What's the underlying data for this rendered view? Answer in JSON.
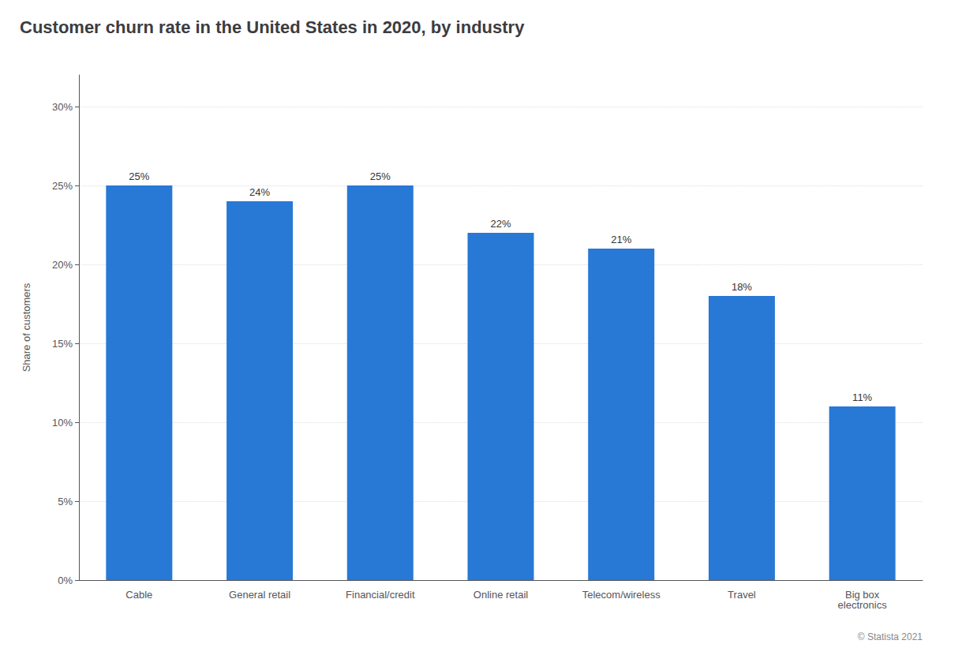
{
  "chart_data": {
    "type": "bar",
    "title": "Customer churn rate in the United States in 2020, by industry",
    "categories": [
      "Cable",
      "General retail",
      "Financial/credit",
      "Online retail",
      "Telecom/wireless",
      "Travel",
      "Big box\nelectronics"
    ],
    "values": [
      25,
      24,
      25,
      22,
      21,
      18,
      11
    ],
    "value_labels": [
      "25%",
      "24%",
      "25%",
      "22%",
      "21%",
      "18%",
      "11%"
    ],
    "data_labels": true,
    "color": "#2878d6",
    "ylabel": "Share of customers",
    "ylim": [
      0,
      32
    ],
    "yticks": [
      {
        "value": 0,
        "label": "0%"
      },
      {
        "value": 5,
        "label": "5%"
      },
      {
        "value": 10,
        "label": "10%"
      },
      {
        "value": 15,
        "label": "15%"
      },
      {
        "value": 20,
        "label": "20%"
      },
      {
        "value": 25,
        "label": "25%"
      },
      {
        "value": 30,
        "label": "30%"
      }
    ],
    "grid": true,
    "annotation": "© Statista 2021"
  }
}
